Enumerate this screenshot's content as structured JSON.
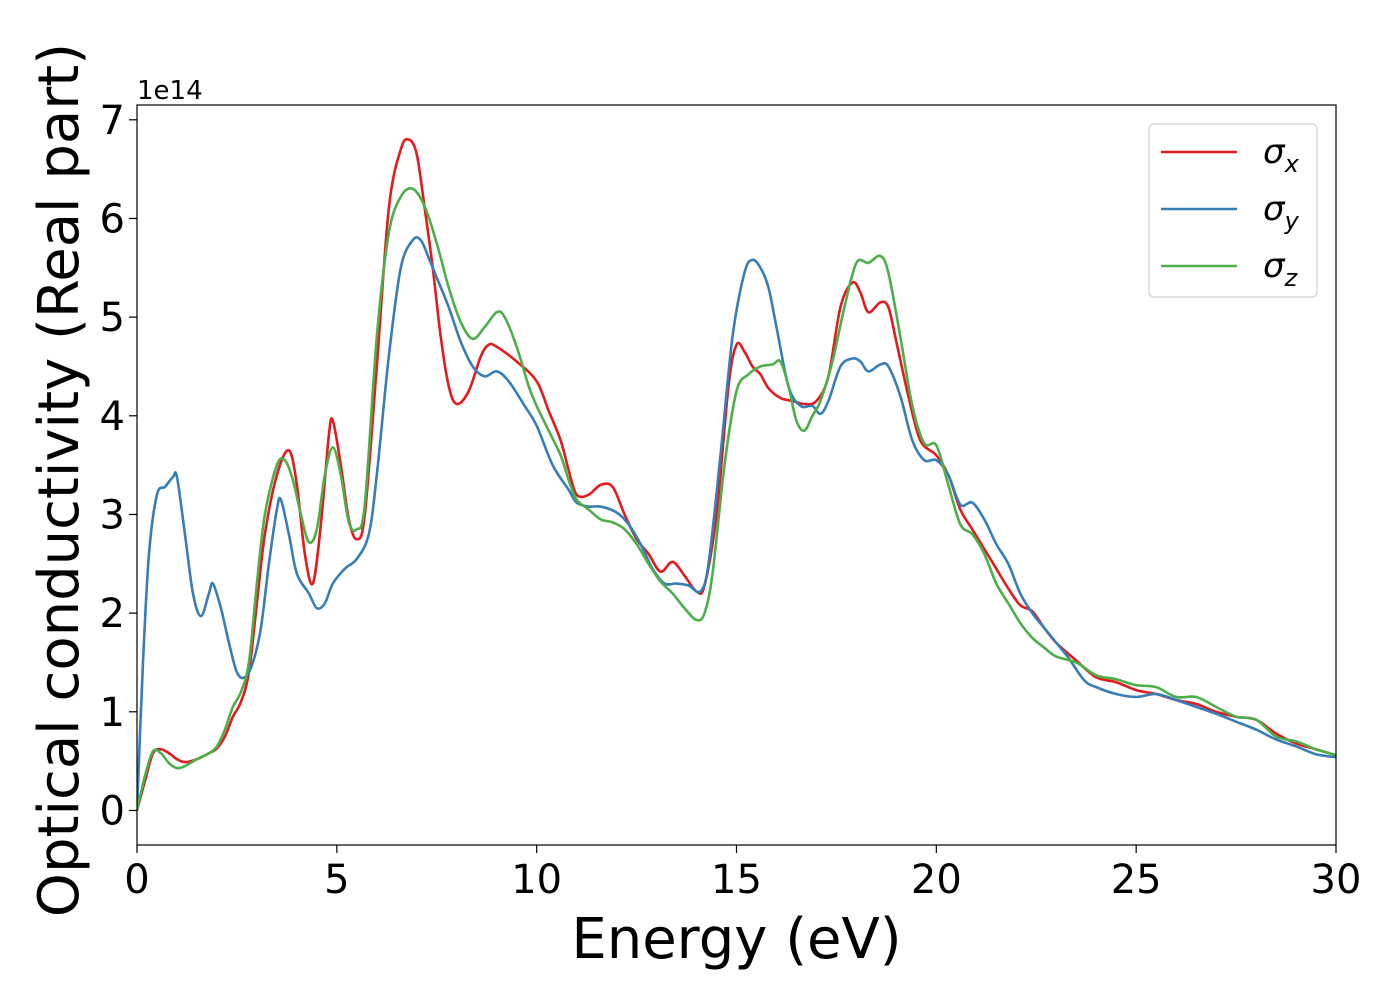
{
  "chart_data": {
    "type": "line",
    "xlabel": "Energy (eV)",
    "ylabel": "Optical conductivity (Real part)",
    "y_offset_text": "1e14",
    "xlim": [
      0,
      30
    ],
    "ylim": [
      -0.35,
      7.15
    ],
    "xticks": [
      0,
      5,
      10,
      15,
      20,
      25,
      30
    ],
    "yticks": [
      0,
      1,
      2,
      3,
      4,
      5,
      6,
      7
    ],
    "grid": false,
    "legend_position": "top-right",
    "series": [
      {
        "name": "σx",
        "symbol": "σ",
        "sub": "x",
        "color": "#e41a1c",
        "points": [
          [
            0,
            0
          ],
          [
            0.2,
            0.3
          ],
          [
            0.4,
            0.58
          ],
          [
            0.6,
            0.62
          ],
          [
            0.8,
            0.58
          ],
          [
            1.0,
            0.52
          ],
          [
            1.2,
            0.49
          ],
          [
            1.5,
            0.52
          ],
          [
            1.8,
            0.58
          ],
          [
            2.0,
            0.63
          ],
          [
            2.2,
            0.75
          ],
          [
            2.4,
            0.95
          ],
          [
            2.6,
            1.1
          ],
          [
            2.8,
            1.4
          ],
          [
            3.0,
            2.1
          ],
          [
            3.2,
            2.8
          ],
          [
            3.5,
            3.4
          ],
          [
            3.8,
            3.65
          ],
          [
            4.0,
            3.3
          ],
          [
            4.2,
            2.6
          ],
          [
            4.4,
            2.3
          ],
          [
            4.6,
            2.9
          ],
          [
            4.8,
            3.8
          ],
          [
            4.9,
            3.95
          ],
          [
            5.1,
            3.5
          ],
          [
            5.3,
            2.95
          ],
          [
            5.5,
            2.75
          ],
          [
            5.7,
            3.0
          ],
          [
            6.0,
            4.5
          ],
          [
            6.3,
            6.1
          ],
          [
            6.6,
            6.7
          ],
          [
            6.8,
            6.8
          ],
          [
            7.0,
            6.65
          ],
          [
            7.2,
            6.1
          ],
          [
            7.4,
            5.5
          ],
          [
            7.6,
            4.8
          ],
          [
            7.8,
            4.3
          ],
          [
            8.0,
            4.12
          ],
          [
            8.3,
            4.25
          ],
          [
            8.6,
            4.6
          ],
          [
            8.8,
            4.72
          ],
          [
            9.0,
            4.7
          ],
          [
            9.5,
            4.55
          ],
          [
            10.0,
            4.35
          ],
          [
            10.3,
            4.05
          ],
          [
            10.6,
            3.75
          ],
          [
            10.8,
            3.45
          ],
          [
            11.0,
            3.2
          ],
          [
            11.3,
            3.2
          ],
          [
            11.6,
            3.3
          ],
          [
            11.9,
            3.28
          ],
          [
            12.2,
            3.0
          ],
          [
            12.5,
            2.75
          ],
          [
            12.8,
            2.6
          ],
          [
            13.1,
            2.42
          ],
          [
            13.4,
            2.52
          ],
          [
            13.7,
            2.38
          ],
          [
            14.0,
            2.22
          ],
          [
            14.2,
            2.28
          ],
          [
            14.5,
            3.0
          ],
          [
            14.8,
            4.3
          ],
          [
            15.0,
            4.72
          ],
          [
            15.2,
            4.65
          ],
          [
            15.4,
            4.5
          ],
          [
            15.6,
            4.42
          ],
          [
            15.8,
            4.28
          ],
          [
            16.1,
            4.18
          ],
          [
            16.4,
            4.15
          ],
          [
            16.7,
            4.12
          ],
          [
            17.0,
            4.15
          ],
          [
            17.3,
            4.4
          ],
          [
            17.6,
            5.1
          ],
          [
            17.9,
            5.35
          ],
          [
            18.1,
            5.25
          ],
          [
            18.3,
            5.05
          ],
          [
            18.6,
            5.15
          ],
          [
            18.8,
            5.1
          ],
          [
            19.0,
            4.75
          ],
          [
            19.3,
            4.2
          ],
          [
            19.6,
            3.75
          ],
          [
            20.0,
            3.6
          ],
          [
            20.3,
            3.4
          ],
          [
            20.6,
            3.05
          ],
          [
            20.9,
            2.85
          ],
          [
            21.2,
            2.65
          ],
          [
            21.5,
            2.45
          ],
          [
            21.8,
            2.25
          ],
          [
            22.1,
            2.08
          ],
          [
            22.4,
            2.02
          ],
          [
            22.7,
            1.85
          ],
          [
            23.0,
            1.7
          ],
          [
            23.5,
            1.52
          ],
          [
            24.0,
            1.35
          ],
          [
            24.5,
            1.3
          ],
          [
            25.0,
            1.22
          ],
          [
            25.5,
            1.18
          ],
          [
            26.0,
            1.12
          ],
          [
            26.5,
            1.08
          ],
          [
            27.0,
            1.0
          ],
          [
            27.5,
            0.95
          ],
          [
            28.0,
            0.92
          ],
          [
            28.5,
            0.78
          ],
          [
            29.0,
            0.68
          ],
          [
            29.5,
            0.62
          ],
          [
            30,
            0.56
          ]
        ]
      },
      {
        "name": "σy",
        "symbol": "σ",
        "sub": "y",
        "color": "#377eb8",
        "points": [
          [
            0,
            0
          ],
          [
            0.15,
            1.5
          ],
          [
            0.3,
            2.6
          ],
          [
            0.5,
            3.2
          ],
          [
            0.7,
            3.28
          ],
          [
            0.9,
            3.38
          ],
          [
            1.0,
            3.38
          ],
          [
            1.2,
            2.8
          ],
          [
            1.4,
            2.2
          ],
          [
            1.6,
            1.97
          ],
          [
            1.8,
            2.2
          ],
          [
            1.9,
            2.3
          ],
          [
            2.1,
            2.05
          ],
          [
            2.3,
            1.7
          ],
          [
            2.5,
            1.4
          ],
          [
            2.7,
            1.35
          ],
          [
            2.9,
            1.5
          ],
          [
            3.1,
            1.85
          ],
          [
            3.3,
            2.5
          ],
          [
            3.5,
            3.05
          ],
          [
            3.6,
            3.15
          ],
          [
            3.8,
            2.8
          ],
          [
            4.0,
            2.4
          ],
          [
            4.3,
            2.2
          ],
          [
            4.5,
            2.05
          ],
          [
            4.7,
            2.1
          ],
          [
            4.9,
            2.3
          ],
          [
            5.2,
            2.45
          ],
          [
            5.5,
            2.55
          ],
          [
            5.8,
            2.8
          ],
          [
            6.0,
            3.4
          ],
          [
            6.3,
            4.6
          ],
          [
            6.6,
            5.5
          ],
          [
            6.9,
            5.78
          ],
          [
            7.1,
            5.78
          ],
          [
            7.3,
            5.6
          ],
          [
            7.5,
            5.4
          ],
          [
            7.8,
            5.1
          ],
          [
            8.1,
            4.75
          ],
          [
            8.4,
            4.5
          ],
          [
            8.7,
            4.4
          ],
          [
            9.0,
            4.45
          ],
          [
            9.3,
            4.35
          ],
          [
            9.7,
            4.1
          ],
          [
            10.0,
            3.9
          ],
          [
            10.4,
            3.5
          ],
          [
            10.8,
            3.25
          ],
          [
            11.0,
            3.12
          ],
          [
            11.3,
            3.08
          ],
          [
            11.6,
            3.08
          ],
          [
            12.0,
            3.02
          ],
          [
            12.3,
            2.9
          ],
          [
            12.6,
            2.7
          ],
          [
            12.9,
            2.45
          ],
          [
            13.2,
            2.3
          ],
          [
            13.5,
            2.3
          ],
          [
            13.8,
            2.28
          ],
          [
            14.1,
            2.22
          ],
          [
            14.3,
            2.5
          ],
          [
            14.6,
            3.6
          ],
          [
            14.9,
            4.8
          ],
          [
            15.2,
            5.45
          ],
          [
            15.4,
            5.58
          ],
          [
            15.6,
            5.5
          ],
          [
            15.8,
            5.3
          ],
          [
            16.0,
            4.9
          ],
          [
            16.3,
            4.3
          ],
          [
            16.6,
            4.1
          ],
          [
            16.9,
            4.1
          ],
          [
            17.1,
            4.02
          ],
          [
            17.3,
            4.15
          ],
          [
            17.6,
            4.5
          ],
          [
            17.9,
            4.58
          ],
          [
            18.1,
            4.55
          ],
          [
            18.3,
            4.45
          ],
          [
            18.6,
            4.52
          ],
          [
            18.8,
            4.5
          ],
          [
            19.1,
            4.2
          ],
          [
            19.4,
            3.75
          ],
          [
            19.7,
            3.55
          ],
          [
            20.0,
            3.55
          ],
          [
            20.3,
            3.4
          ],
          [
            20.6,
            3.1
          ],
          [
            20.9,
            3.12
          ],
          [
            21.2,
            2.95
          ],
          [
            21.5,
            2.7
          ],
          [
            21.8,
            2.5
          ],
          [
            22.1,
            2.2
          ],
          [
            22.4,
            2.0
          ],
          [
            22.7,
            1.85
          ],
          [
            23.0,
            1.7
          ],
          [
            23.3,
            1.55
          ],
          [
            23.7,
            1.32
          ],
          [
            24.0,
            1.25
          ],
          [
            24.5,
            1.18
          ],
          [
            25.0,
            1.15
          ],
          [
            25.5,
            1.18
          ],
          [
            26.0,
            1.12
          ],
          [
            26.5,
            1.05
          ],
          [
            27.0,
            0.98
          ],
          [
            27.5,
            0.9
          ],
          [
            28.0,
            0.82
          ],
          [
            28.5,
            0.72
          ],
          [
            29.0,
            0.65
          ],
          [
            29.5,
            0.57
          ],
          [
            30,
            0.54
          ]
        ]
      },
      {
        "name": "σz",
        "symbol": "σ",
        "sub": "z",
        "color": "#4daf4a",
        "points": [
          [
            0,
            0
          ],
          [
            0.2,
            0.35
          ],
          [
            0.4,
            0.6
          ],
          [
            0.6,
            0.58
          ],
          [
            0.8,
            0.48
          ],
          [
            1.0,
            0.43
          ],
          [
            1.2,
            0.45
          ],
          [
            1.5,
            0.52
          ],
          [
            1.8,
            0.58
          ],
          [
            2.0,
            0.65
          ],
          [
            2.2,
            0.82
          ],
          [
            2.4,
            1.05
          ],
          [
            2.6,
            1.2
          ],
          [
            2.8,
            1.5
          ],
          [
            3.0,
            2.3
          ],
          [
            3.2,
            3.0
          ],
          [
            3.5,
            3.5
          ],
          [
            3.7,
            3.55
          ],
          [
            3.9,
            3.35
          ],
          [
            4.1,
            3.0
          ],
          [
            4.3,
            2.72
          ],
          [
            4.5,
            2.85
          ],
          [
            4.7,
            3.4
          ],
          [
            4.9,
            3.68
          ],
          [
            5.1,
            3.4
          ],
          [
            5.3,
            2.92
          ],
          [
            5.5,
            2.85
          ],
          [
            5.7,
            3.1
          ],
          [
            6.0,
            4.8
          ],
          [
            6.3,
            5.85
          ],
          [
            6.6,
            6.22
          ],
          [
            6.9,
            6.3
          ],
          [
            7.2,
            6.12
          ],
          [
            7.5,
            5.75
          ],
          [
            7.8,
            5.3
          ],
          [
            8.1,
            4.95
          ],
          [
            8.4,
            4.78
          ],
          [
            8.7,
            4.9
          ],
          [
            9.0,
            5.05
          ],
          [
            9.2,
            5.0
          ],
          [
            9.5,
            4.7
          ],
          [
            9.8,
            4.3
          ],
          [
            10.0,
            4.1
          ],
          [
            10.3,
            3.85
          ],
          [
            10.6,
            3.6
          ],
          [
            10.8,
            3.35
          ],
          [
            11.0,
            3.15
          ],
          [
            11.3,
            3.05
          ],
          [
            11.6,
            2.95
          ],
          [
            11.9,
            2.92
          ],
          [
            12.2,
            2.85
          ],
          [
            12.5,
            2.7
          ],
          [
            12.8,
            2.5
          ],
          [
            13.1,
            2.32
          ],
          [
            13.4,
            2.2
          ],
          [
            13.7,
            2.05
          ],
          [
            14.0,
            1.93
          ],
          [
            14.2,
            2.0
          ],
          [
            14.4,
            2.4
          ],
          [
            14.7,
            3.5
          ],
          [
            15.0,
            4.25
          ],
          [
            15.3,
            4.42
          ],
          [
            15.6,
            4.5
          ],
          [
            15.9,
            4.52
          ],
          [
            16.1,
            4.55
          ],
          [
            16.3,
            4.3
          ],
          [
            16.5,
            3.95
          ],
          [
            16.7,
            3.85
          ],
          [
            16.9,
            4.0
          ],
          [
            17.1,
            4.15
          ],
          [
            17.4,
            4.55
          ],
          [
            17.7,
            5.1
          ],
          [
            18.0,
            5.55
          ],
          [
            18.3,
            5.55
          ],
          [
            18.6,
            5.62
          ],
          [
            18.8,
            5.45
          ],
          [
            19.1,
            4.8
          ],
          [
            19.4,
            4.1
          ],
          [
            19.7,
            3.72
          ],
          [
            20.0,
            3.7
          ],
          [
            20.3,
            3.3
          ],
          [
            20.6,
            2.9
          ],
          [
            20.9,
            2.8
          ],
          [
            21.2,
            2.6
          ],
          [
            21.5,
            2.3
          ],
          [
            21.8,
            2.1
          ],
          [
            22.1,
            1.9
          ],
          [
            22.4,
            1.75
          ],
          [
            22.7,
            1.65
          ],
          [
            23.0,
            1.56
          ],
          [
            23.5,
            1.5
          ],
          [
            24.0,
            1.37
          ],
          [
            24.5,
            1.33
          ],
          [
            25.0,
            1.27
          ],
          [
            25.5,
            1.25
          ],
          [
            26.0,
            1.15
          ],
          [
            26.5,
            1.15
          ],
          [
            27.0,
            1.05
          ],
          [
            27.5,
            0.95
          ],
          [
            28.0,
            0.92
          ],
          [
            28.5,
            0.75
          ],
          [
            29.0,
            0.7
          ],
          [
            29.5,
            0.62
          ],
          [
            30,
            0.56
          ]
        ]
      }
    ]
  }
}
